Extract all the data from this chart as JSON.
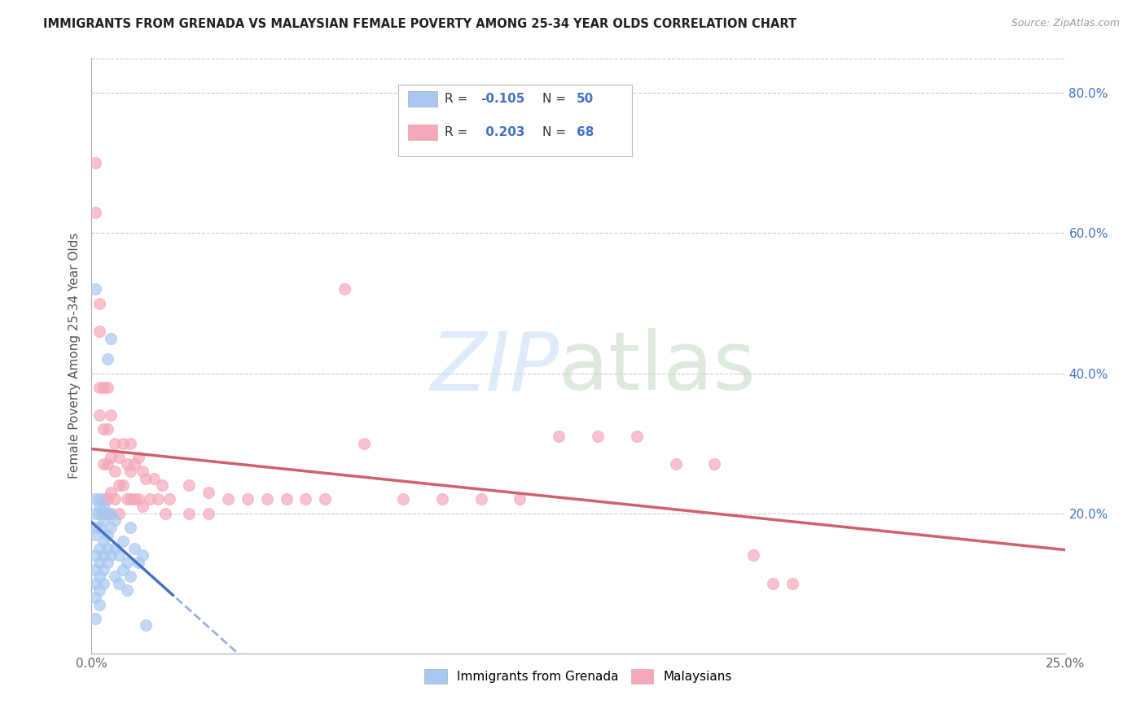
{
  "title": "IMMIGRANTS FROM GRENADA VS MALAYSIAN FEMALE POVERTY AMONG 25-34 YEAR OLDS CORRELATION CHART",
  "source": "Source: ZipAtlas.com",
  "ylabel": "Female Poverty Among 25-34 Year Olds",
  "x_min": 0.0,
  "x_max": 0.25,
  "y_min": 0.0,
  "y_max": 0.85,
  "color_blue": "#a8c8f0",
  "color_pink": "#f4a8b8",
  "color_line_blue": "#4472c4",
  "color_line_pink": "#d06070",
  "color_axis_right": "#4472c4",
  "background_color": "#ffffff",
  "grid_color": "#cccccc",
  "series1_label": "Immigrants from Grenada",
  "series2_label": "Malaysians",
  "scatter_blue_x": [
    0.001,
    0.001,
    0.001,
    0.001,
    0.001,
    0.001,
    0.001,
    0.001,
    0.001,
    0.001,
    0.002,
    0.002,
    0.002,
    0.002,
    0.002,
    0.002,
    0.002,
    0.002,
    0.002,
    0.003,
    0.003,
    0.003,
    0.003,
    0.003,
    0.003,
    0.003,
    0.004,
    0.004,
    0.004,
    0.004,
    0.004,
    0.005,
    0.005,
    0.005,
    0.005,
    0.006,
    0.006,
    0.006,
    0.007,
    0.007,
    0.008,
    0.008,
    0.009,
    0.009,
    0.01,
    0.01,
    0.011,
    0.012,
    0.013,
    0.014
  ],
  "scatter_blue_y": [
    0.52,
    0.2,
    0.17,
    0.14,
    0.12,
    0.1,
    0.08,
    0.05,
    0.22,
    0.18,
    0.22,
    0.2,
    0.18,
    0.15,
    0.13,
    0.11,
    0.09,
    0.07,
    0.21,
    0.21,
    0.19,
    0.16,
    0.14,
    0.12,
    0.1,
    0.2,
    0.42,
    0.2,
    0.17,
    0.13,
    0.15,
    0.45,
    0.2,
    0.14,
    0.18,
    0.19,
    0.15,
    0.11,
    0.14,
    0.1,
    0.16,
    0.12,
    0.13,
    0.09,
    0.18,
    0.11,
    0.15,
    0.13,
    0.14,
    0.04
  ],
  "scatter_pink_x": [
    0.001,
    0.001,
    0.002,
    0.002,
    0.002,
    0.002,
    0.003,
    0.003,
    0.003,
    0.003,
    0.004,
    0.004,
    0.004,
    0.004,
    0.004,
    0.005,
    0.005,
    0.005,
    0.005,
    0.006,
    0.006,
    0.006,
    0.007,
    0.007,
    0.007,
    0.008,
    0.008,
    0.009,
    0.009,
    0.01,
    0.01,
    0.01,
    0.011,
    0.011,
    0.012,
    0.012,
    0.013,
    0.013,
    0.014,
    0.015,
    0.016,
    0.017,
    0.018,
    0.019,
    0.02,
    0.025,
    0.025,
    0.03,
    0.03,
    0.035,
    0.04,
    0.045,
    0.05,
    0.055,
    0.06,
    0.065,
    0.07,
    0.08,
    0.09,
    0.1,
    0.11,
    0.12,
    0.13,
    0.14,
    0.15,
    0.16,
    0.17,
    0.175,
    0.18
  ],
  "scatter_pink_y": [
    0.7,
    0.63,
    0.5,
    0.46,
    0.38,
    0.34,
    0.38,
    0.32,
    0.27,
    0.22,
    0.38,
    0.32,
    0.27,
    0.22,
    0.2,
    0.34,
    0.28,
    0.23,
    0.2,
    0.3,
    0.26,
    0.22,
    0.28,
    0.24,
    0.2,
    0.3,
    0.24,
    0.27,
    0.22,
    0.3,
    0.26,
    0.22,
    0.27,
    0.22,
    0.28,
    0.22,
    0.26,
    0.21,
    0.25,
    0.22,
    0.25,
    0.22,
    0.24,
    0.2,
    0.22,
    0.24,
    0.2,
    0.23,
    0.2,
    0.22,
    0.22,
    0.22,
    0.22,
    0.22,
    0.22,
    0.52,
    0.3,
    0.22,
    0.22,
    0.22,
    0.22,
    0.31,
    0.31,
    0.31,
    0.27,
    0.27,
    0.14,
    0.1,
    0.1
  ]
}
